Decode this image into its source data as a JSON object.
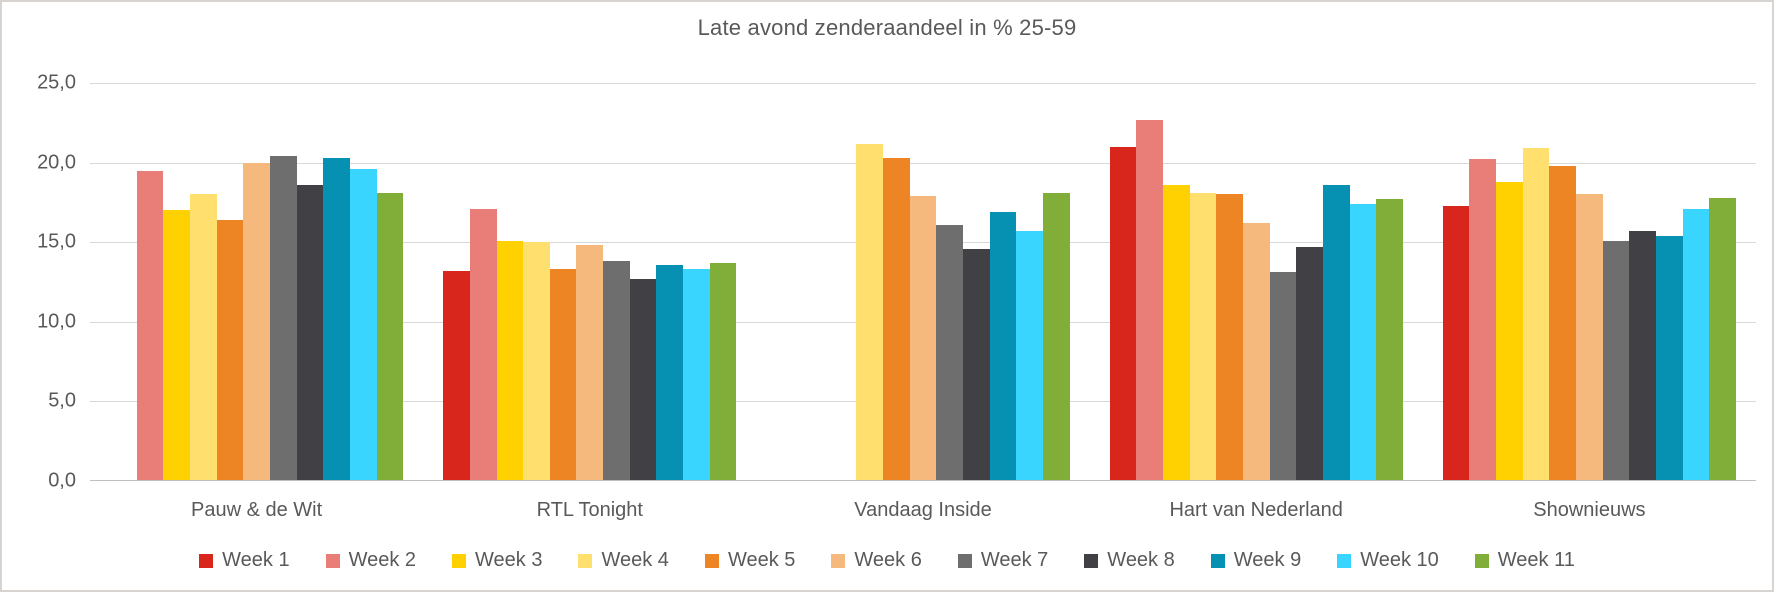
{
  "chart_data": {
    "type": "bar",
    "title": "Late avond zenderaandeel in % 25-59",
    "categories": [
      "Pauw & de Wit",
      "RTL Tonight",
      "Vandaag Inside",
      "Hart van Nederland",
      "Shownieuws"
    ],
    "series": [
      {
        "name": "Week 1",
        "color": "#d9261c",
        "values": [
          null,
          13.2,
          null,
          21.0,
          17.3
        ]
      },
      {
        "name": "Week 2",
        "color": "#e97d78",
        "values": [
          19.5,
          17.1,
          null,
          22.7,
          20.2
        ]
      },
      {
        "name": "Week 3",
        "color": "#ffd100",
        "values": [
          17.0,
          15.1,
          null,
          18.6,
          18.8
        ]
      },
      {
        "name": "Week 4",
        "color": "#ffe06e",
        "values": [
          18.0,
          15.0,
          21.2,
          18.1,
          20.9
        ]
      },
      {
        "name": "Week 5",
        "color": "#ee8524",
        "values": [
          16.4,
          13.3,
          20.3,
          18.0,
          19.8
        ]
      },
      {
        "name": "Week 6",
        "color": "#f6b97d",
        "values": [
          20.0,
          14.8,
          17.9,
          16.2,
          18.0
        ]
      },
      {
        "name": "Week 7",
        "color": "#6e6e6e",
        "values": [
          20.4,
          13.8,
          16.1,
          13.1,
          15.1
        ]
      },
      {
        "name": "Week 8",
        "color": "#414044",
        "values": [
          18.6,
          12.7,
          14.6,
          14.7,
          15.7
        ]
      },
      {
        "name": "Week 9",
        "color": "#0690b2",
        "values": [
          20.3,
          13.6,
          16.9,
          18.6,
          15.4
        ]
      },
      {
        "name": "Week 10",
        "color": "#3ad5fe",
        "values": [
          19.6,
          13.3,
          15.7,
          17.4,
          17.1
        ]
      },
      {
        "name": "Week 11",
        "color": "#80ae38",
        "values": [
          18.1,
          13.7,
          18.1,
          17.7,
          17.8
        ]
      }
    ],
    "y_ticks": [
      {
        "value": 25,
        "label": "25,0"
      },
      {
        "value": 20,
        "label": "20,0"
      },
      {
        "value": 15,
        "label": "15,0"
      },
      {
        "value": 10,
        "label": "10,0"
      },
      {
        "value": 5,
        "label": "5,0"
      },
      {
        "value": 0,
        "label": "0,0"
      }
    ],
    "ylim": [
      0,
      25
    ],
    "xlabel": "",
    "ylabel": "",
    "grid": true,
    "legend_position": "bottom",
    "value_format": "comma-decimal"
  },
  "style_colors": {
    "gridline": "#d9d9d9",
    "axis_line": "#bfbfbf",
    "text": "#595959",
    "frame_border": "#d6d3d1",
    "background": "#ffffff"
  }
}
